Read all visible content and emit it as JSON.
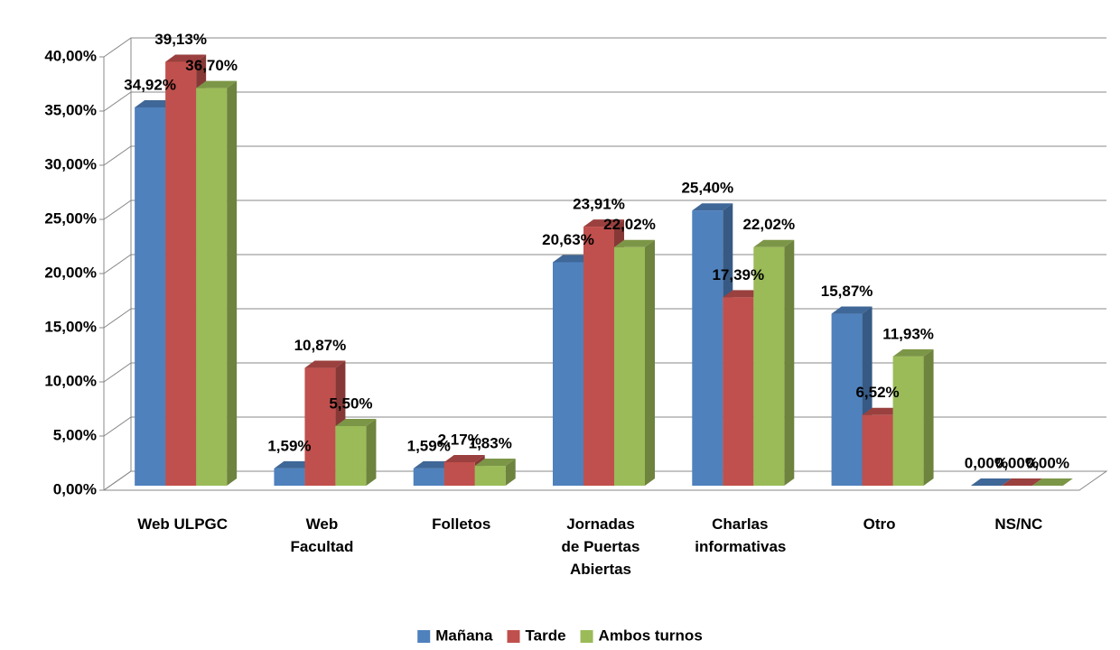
{
  "chart_data": {
    "type": "bar3d",
    "categories": [
      "Web ULPGC",
      "Web Facultad",
      "Folletos",
      "Jornadas de Puertas Abiertas",
      "Charlas informativas",
      "Otro",
      "NS/NC"
    ],
    "series": [
      {
        "name": "Mañana",
        "color": "#4f81bd",
        "values": [
          34.92,
          1.59,
          1.59,
          20.63,
          25.4,
          15.87,
          0.0
        ],
        "value_labels": [
          "34,92%",
          "1,59%",
          "1,59%",
          "20,63%",
          "25,40%",
          "15,87%",
          "0,00%"
        ]
      },
      {
        "name": "Tarde",
        "color": "#c0504d",
        "values": [
          39.13,
          10.87,
          2.17,
          23.91,
          17.39,
          6.52,
          0.0
        ],
        "value_labels": [
          "39,13%",
          "10,87%",
          "2,17%",
          "23,91%",
          "17,39%",
          "6,52%",
          "0,00%"
        ]
      },
      {
        "name": "Ambos turnos",
        "color": "#9bbb59",
        "values": [
          36.7,
          5.5,
          1.83,
          22.02,
          22.02,
          11.93,
          0.0
        ],
        "value_labels": [
          "36,70%",
          "5,50%",
          "1,83%",
          "22,02%",
          "22,02%",
          "11,93%",
          "0,00%"
        ]
      }
    ],
    "ylim": [
      0,
      40
    ],
    "yticks": [
      {
        "value": 0,
        "label": "0,00%"
      },
      {
        "value": 5,
        "label": "5,00%"
      },
      {
        "value": 10,
        "label": "10,00%"
      },
      {
        "value": 15,
        "label": "15,00%"
      },
      {
        "value": 20,
        "label": "20,00%"
      },
      {
        "value": 25,
        "label": "25,00%"
      },
      {
        "value": 30,
        "label": "30,00%"
      },
      {
        "value": 35,
        "label": "35,00%"
      },
      {
        "value": 40,
        "label": "40,00%"
      }
    ],
    "grid": true,
    "legend": "bottom"
  }
}
